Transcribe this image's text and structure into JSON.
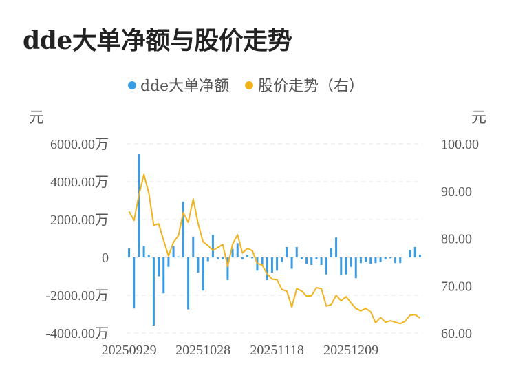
{
  "title": "dde大单净额与股价走势",
  "chart_data": {
    "type": "bar+line",
    "legend": [
      {
        "name": "dde大单净额",
        "color": "#3a9de3"
      },
      {
        "name": "股价走势（右）",
        "color": "#f2b21b"
      }
    ],
    "left_unit": "元",
    "right_unit": "元",
    "left_ticks": [
      "6000.00万",
      "4000.00万",
      "2000.00万",
      "0",
      "-2000.00万",
      "-4000.00万"
    ],
    "right_ticks": [
      "100.00",
      "90.00",
      "80.00",
      "70.00",
      "60.00"
    ],
    "x_ticks": [
      "20250929",
      "20251028",
      "20251118",
      "20251209"
    ],
    "left_range": [
      -4000,
      6000
    ],
    "right_range": [
      60,
      100
    ],
    "bar_values": [
      480,
      -2700,
      5450,
      600,
      120,
      -3600,
      -1000,
      -1900,
      -500,
      600,
      50,
      2950,
      -2750,
      1100,
      -800,
      -1750,
      -200,
      1200,
      -100,
      -100,
      -1200,
      450,
      750,
      -100,
      150,
      -50,
      -700,
      -400,
      -1200,
      -800,
      -700,
      -250,
      550,
      -600,
      550,
      -100,
      -350,
      -400,
      -100,
      -400,
      -900,
      500,
      1050,
      -950,
      -900,
      -500,
      -1100,
      -300,
      -250,
      -350,
      -300,
      -250,
      -100,
      -50,
      -300,
      -300,
      0,
      400,
      550,
      150
    ],
    "line_values": [
      85.7,
      83.8,
      89.2,
      93.5,
      89.6,
      82.8,
      83.1,
      79.6,
      76.3,
      79.2,
      80.6,
      85.5,
      83.4,
      88.3,
      83.2,
      79.3,
      78.5,
      77.5,
      78.1,
      78.7,
      74.1,
      78.8,
      80.8,
      76.9,
      77.9,
      77.4,
      74.7,
      74.4,
      72.5,
      71.4,
      71.3,
      69.2,
      68.9,
      65.5,
      69.4,
      68.9,
      67.8,
      67.9,
      69.6,
      69.4,
      65.7,
      66.0,
      68.0,
      66.8,
      67.7,
      66.4,
      65.2,
      64.7,
      65.2,
      64.5,
      62.2,
      63.3,
      62.3,
      62.6,
      62.3,
      62.0,
      62.5,
      63.8,
      63.9,
      63.2
    ]
  }
}
